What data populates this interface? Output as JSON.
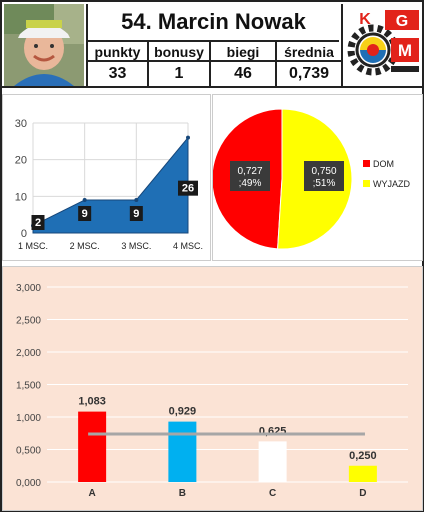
{
  "header": {
    "title": "54. Marcin Nowak",
    "stats": [
      {
        "label": "punkty",
        "value": "33"
      },
      {
        "label": "bonusy",
        "value": "1"
      },
      {
        "label": "biegi",
        "value": "46"
      },
      {
        "label": "średnia",
        "value": "0,739"
      }
    ],
    "logo": {
      "letters": [
        "G",
        "K",
        "M"
      ],
      "colors": {
        "red": "#e2231a",
        "blue": "#1f6fb5",
        "yellow": "#f7d117",
        "gear": "#222222"
      }
    }
  },
  "chart_data": [
    {
      "type": "area",
      "categories": [
        "1 MSC.",
        "2 MSC.",
        "3 MSC.",
        "4 MSC."
      ],
      "values": [
        2,
        9,
        9,
        26
      ],
      "data_labels": [
        "2",
        "9",
        "9",
        "26"
      ],
      "y_ticks": [
        "0",
        "10",
        "20",
        "30"
      ],
      "ylim": [
        0,
        30
      ],
      "grid": true,
      "color": "#1f6fb5"
    },
    {
      "type": "pie",
      "categories": [
        "DOM",
        "WYJAZD"
      ],
      "values": [
        49,
        51
      ],
      "data_labels": [
        "0,727\n;49%",
        "0,750\n;51%"
      ],
      "colors": [
        "#ff0000",
        "#ffff00"
      ],
      "legend_position": "right"
    },
    {
      "type": "bar",
      "categories": [
        "A",
        "B",
        "C",
        "D"
      ],
      "values": [
        1.083,
        0.929,
        0.625,
        0.25
      ],
      "data_labels": [
        "1,083",
        "0,929",
        "0,625",
        "0,250"
      ],
      "colors": [
        "#ff0000",
        "#00b0f0",
        "#ffffff",
        "#ffff00"
      ],
      "y_ticks": [
        "0,000",
        "0,500",
        "1,000",
        "1,500",
        "2,000",
        "2,500",
        "3,000"
      ],
      "ylim": [
        0,
        3
      ],
      "reference_line": 0.739,
      "grid": true,
      "background": "#fbe3d5"
    }
  ]
}
